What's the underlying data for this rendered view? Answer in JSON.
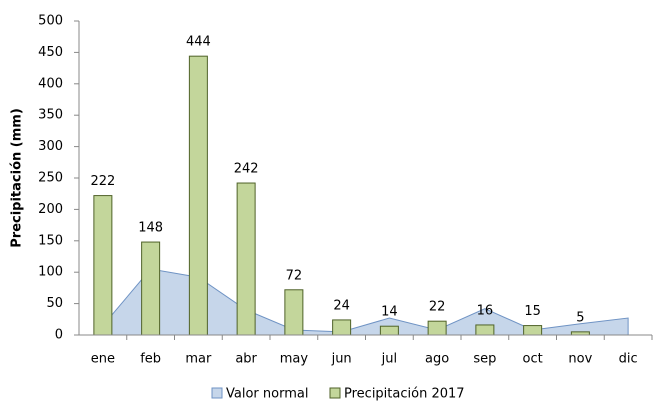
{
  "chart_data": {
    "type": "bar",
    "y_label": "Precipitación (mm)",
    "categories": [
      "ene",
      "feb",
      "mar",
      "abr",
      "may",
      "jun",
      "jul",
      "ago",
      "sep",
      "oct",
      "nov",
      "dic"
    ],
    "series": [
      {
        "name": "Valor normal",
        "type": "area",
        "color": "#c6d6ea",
        "values": [
          15,
          105,
          92,
          40,
          8,
          5,
          27,
          8,
          42,
          8,
          18,
          27
        ]
      },
      {
        "name": "Precipitación 2017",
        "type": "bar",
        "color": "#c3d69b",
        "values": [
          222,
          148,
          444,
          242,
          72,
          24,
          14,
          22,
          16,
          15,
          5,
          null
        ]
      }
    ],
    "ylim": [
      0,
      500
    ],
    "yticks": [
      0,
      50,
      100,
      150,
      200,
      250,
      300,
      350,
      400,
      450,
      500
    ],
    "grid": false
  }
}
